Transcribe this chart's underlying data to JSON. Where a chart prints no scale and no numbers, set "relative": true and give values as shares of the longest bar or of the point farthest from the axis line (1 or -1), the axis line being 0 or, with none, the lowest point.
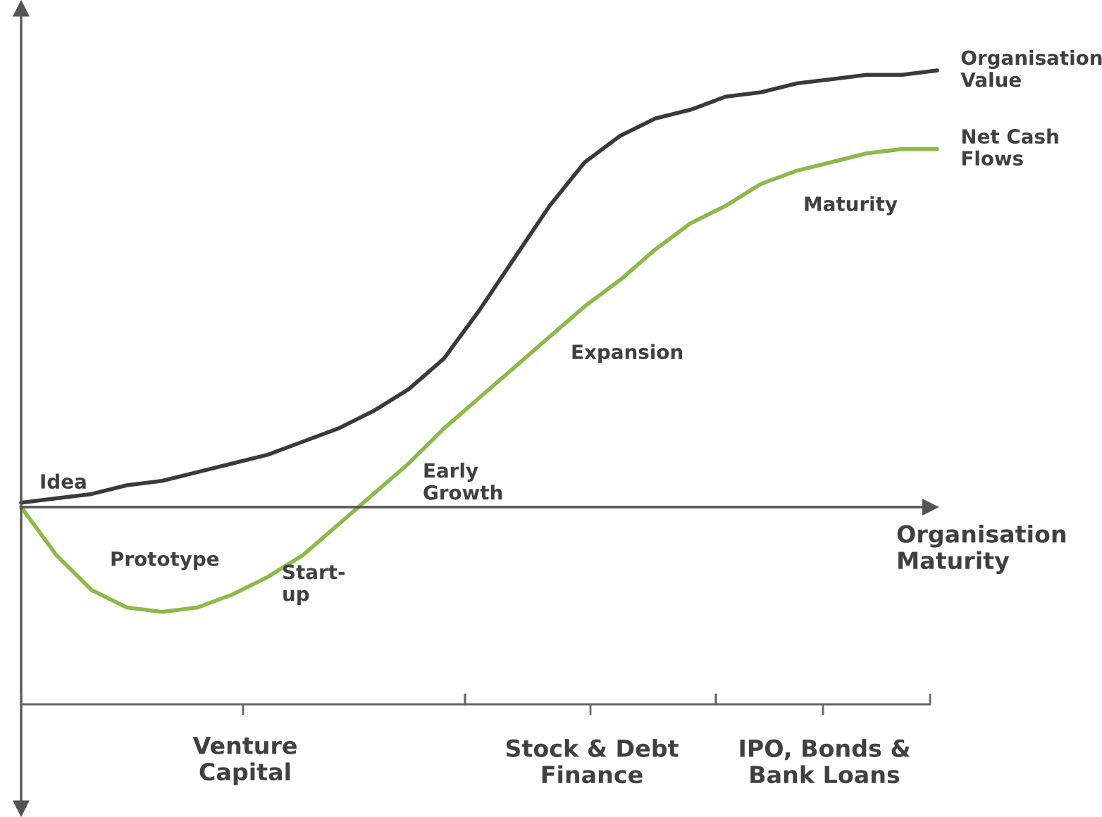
{
  "chart_data": {
    "type": "line",
    "relative": true,
    "xlabel": "Organisation\nMaturity",
    "categories": [
      null,
      null,
      null,
      null,
      null,
      null,
      null,
      null,
      null,
      null,
      null,
      null,
      null,
      null,
      null,
      null,
      null,
      null,
      null,
      null,
      null,
      null,
      null,
      null,
      null,
      null,
      null
    ],
    "series": [
      {
        "name": "Organisation\nValue",
        "color": "#3a3a3a",
        "values": [
          0.01,
          0.02,
          0.03,
          0.05,
          0.06,
          0.08,
          0.1,
          0.12,
          0.15,
          0.18,
          0.22,
          0.27,
          0.34,
          0.45,
          0.57,
          0.69,
          0.79,
          0.85,
          0.89,
          0.91,
          0.94,
          0.95,
          0.97,
          0.98,
          0.99,
          0.99,
          1
        ]
      },
      {
        "name": "Net Cash\nFlows",
        "color": "#8db94a",
        "values": [
          0,
          -0.11,
          -0.19,
          -0.23,
          -0.24,
          -0.23,
          -0.2,
          -0.16,
          -0.11,
          -0.04,
          0.03,
          0.1,
          0.18,
          0.25,
          0.32,
          0.39,
          0.46,
          0.52,
          0.59,
          0.65,
          0.69,
          0.74,
          0.77,
          0.79,
          0.81,
          0.82,
          0.82
        ]
      }
    ],
    "annotations": [
      "Idea",
      "Prototype",
      "Start-\nup",
      "Early\nGrowth",
      "Expansion",
      "Maturity",
      "Venture\nCapital",
      "Stock & Debt\nFinance",
      "IPO, Bonds &\nBank Loans"
    ],
    "legend": false,
    "grid": false,
    "marker": "none",
    "line_style": "solid"
  }
}
